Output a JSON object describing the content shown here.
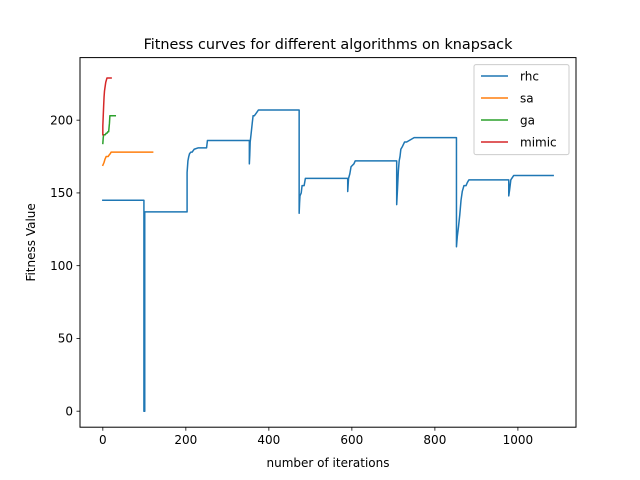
{
  "chart_data": {
    "type": "line",
    "title": "Fitness curves for different algorithms on knapsack",
    "xlabel": "number of iterations",
    "ylabel": "Fitness Value",
    "xlim": [
      -55,
      1140
    ],
    "ylim": [
      -11,
      243
    ],
    "xticks": [
      0,
      200,
      400,
      600,
      800,
      1000
    ],
    "yticks": [
      0,
      50,
      100,
      150,
      200
    ],
    "grid": false,
    "legend_position": "top-right",
    "series": [
      {
        "name": "rhc",
        "color": "#1f77b4",
        "x": [
          0,
          99,
          99,
          100,
          101,
          101,
          203,
          203,
          205,
          207,
          209,
          212,
          215,
          220,
          230,
          250,
          252,
          353,
          353,
          354,
          355,
          357,
          360,
          362,
          365,
          370,
          375,
          473,
          473,
          474,
          475,
          478,
          480,
          482,
          485,
          488,
          590,
          590,
          592,
          595,
          598,
          605,
          608,
          708,
          708,
          710,
          712,
          714,
          716,
          718,
          722,
          727,
          732,
          750,
          852,
          852,
          854,
          857,
          860,
          863,
          866,
          870,
          875,
          878,
          880,
          882,
          978,
          978,
          980,
          983,
          990,
          1085
        ],
        "y": [
          145,
          145,
          0,
          0,
          0,
          137,
          137,
          164,
          172,
          175,
          177,
          178,
          178,
          180,
          181,
          181,
          186,
          186,
          170,
          176,
          185,
          190,
          198,
          203,
          203,
          205,
          207,
          207,
          136,
          143,
          148,
          150,
          155,
          155,
          155,
          160,
          160,
          151,
          160,
          163,
          168,
          170,
          172,
          172,
          142,
          153,
          165,
          172,
          175,
          180,
          182,
          185,
          185,
          188,
          188,
          113,
          120,
          127,
          135,
          145,
          151,
          155,
          155,
          157,
          158,
          159,
          159,
          148,
          152,
          159,
          162,
          162
        ]
      },
      {
        "name": "sa",
        "color": "#ff7f0e",
        "x": [
          0,
          0,
          3,
          5,
          8,
          10,
          13,
          15,
          18,
          20,
          25,
          40,
          60,
          80,
          100,
          120
        ],
        "y": [
          169,
          169,
          171,
          173,
          175,
          175,
          175,
          176,
          177,
          178,
          178,
          178,
          178,
          178,
          178,
          178
        ]
      },
      {
        "name": "ga",
        "color": "#2ca02c",
        "x": [
          0,
          1,
          2,
          3,
          4,
          5,
          6,
          8,
          10,
          12,
          14,
          16,
          17,
          18,
          20,
          25,
          30
        ],
        "y": [
          184,
          188,
          190,
          190,
          190,
          190,
          190,
          191,
          191,
          192,
          192,
          198,
          203,
          203,
          203,
          203,
          203
        ]
      },
      {
        "name": "mimic",
        "color": "#d62728",
        "x": [
          0,
          0,
          1,
          2,
          3,
          4,
          5,
          6,
          7,
          8,
          9,
          10,
          12,
          14,
          16,
          18,
          20
        ],
        "y": [
          190,
          196,
          203,
          210,
          216,
          220,
          222,
          224,
          226,
          227,
          228,
          229,
          229,
          229,
          229,
          229,
          229
        ]
      }
    ]
  }
}
